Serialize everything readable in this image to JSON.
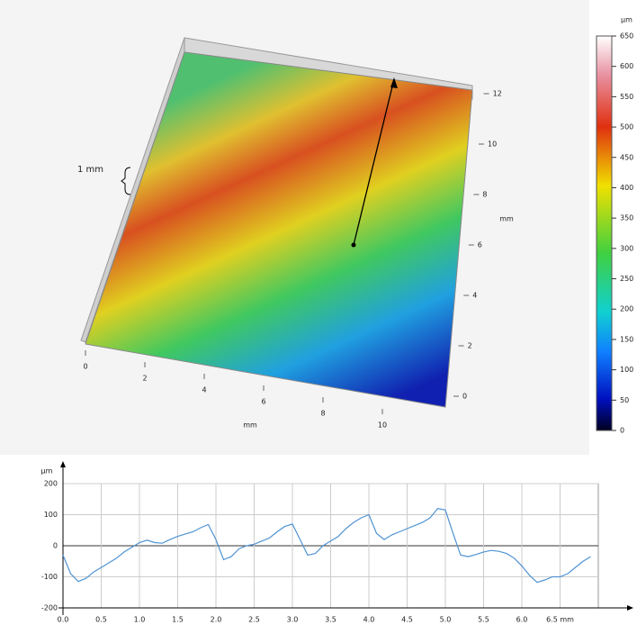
{
  "chart_data": [
    {
      "type": "surface3d",
      "annotation": "1 mm",
      "x_label": "mm",
      "y_label": "mm",
      "xticks": [
        0,
        2,
        4,
        6,
        8,
        10
      ],
      "yticks": [
        0,
        2,
        4,
        6,
        8,
        10,
        12
      ],
      "colorbar": {
        "label": "µm",
        "lim": [
          0,
          650
        ],
        "ticks": [
          0,
          50,
          100,
          150,
          200,
          250,
          300,
          350,
          400,
          450,
          500,
          550,
          600,
          650
        ]
      }
    },
    {
      "type": "line",
      "y_label": "µm",
      "xlim": [
        0,
        7
      ],
      "ylim": [
        -200,
        200
      ],
      "xticks": [
        {
          "value": 0,
          "label": "0.0"
        },
        {
          "value": 0.5,
          "label": "0.5"
        },
        {
          "value": 1,
          "label": "1.0"
        },
        {
          "value": 1.5,
          "label": "1.5"
        },
        {
          "value": 2,
          "label": "2.0"
        },
        {
          "value": 2.5,
          "label": "2.5"
        },
        {
          "value": 3,
          "label": "3.0"
        },
        {
          "value": 3.5,
          "label": "3.5"
        },
        {
          "value": 4,
          "label": "4.0"
        },
        {
          "value": 4.5,
          "label": "4.5"
        },
        {
          "value": 5,
          "label": "5.0"
        },
        {
          "value": 5.5,
          "label": "5.5"
        },
        {
          "value": 6,
          "label": "6.0"
        },
        {
          "value": 6.5,
          "label": "6.5 mm"
        }
      ],
      "yticks": [
        -200,
        -100,
        0,
        100,
        200
      ],
      "grid": true,
      "x": [
        0,
        0.1,
        0.2,
        0.3,
        0.4,
        0.5,
        0.6,
        0.7,
        0.8,
        0.9,
        1,
        1.1,
        1.2,
        1.3,
        1.4,
        1.5,
        1.6,
        1.7,
        1.8,
        1.9,
        2,
        2.1,
        2.2,
        2.3,
        2.4,
        2.5,
        2.6,
        2.7,
        2.8,
        2.9,
        3,
        3.1,
        3.2,
        3.3,
        3.4,
        3.5,
        3.6,
        3.7,
        3.8,
        3.9,
        4,
        4.1,
        4.2,
        4.3,
        4.4,
        4.5,
        4.6,
        4.7,
        4.8,
        4.9,
        5,
        5.1,
        5.2,
        5.3,
        5.4,
        5.5,
        5.6,
        5.7,
        5.8,
        5.9,
        6,
        6.1,
        6.2,
        6.3,
        6.4,
        6.5,
        6.6,
        6.7,
        6.8,
        6.9
      ],
      "series": [
        {
          "color": "#4f93d2",
          "values": [
            -30,
            -90,
            -115,
            -105,
            -85,
            -70,
            -55,
            -40,
            -20,
            -5,
            10,
            18,
            10,
            8,
            20,
            30,
            38,
            45,
            58,
            68,
            20,
            -45,
            -35,
            -10,
            0,
            5,
            15,
            25,
            45,
            62,
            70,
            20,
            -30,
            -25,
            0,
            15,
            30,
            55,
            75,
            90,
            100,
            40,
            20,
            35,
            45,
            55,
            65,
            75,
            90,
            120,
            115,
            40,
            -30,
            -35,
            -28,
            -20,
            -15,
            -18,
            -25,
            -40,
            -65,
            -95,
            -118,
            -110,
            -100,
            -100,
            -90,
            -70,
            -50,
            -35
          ]
        }
      ]
    }
  ]
}
